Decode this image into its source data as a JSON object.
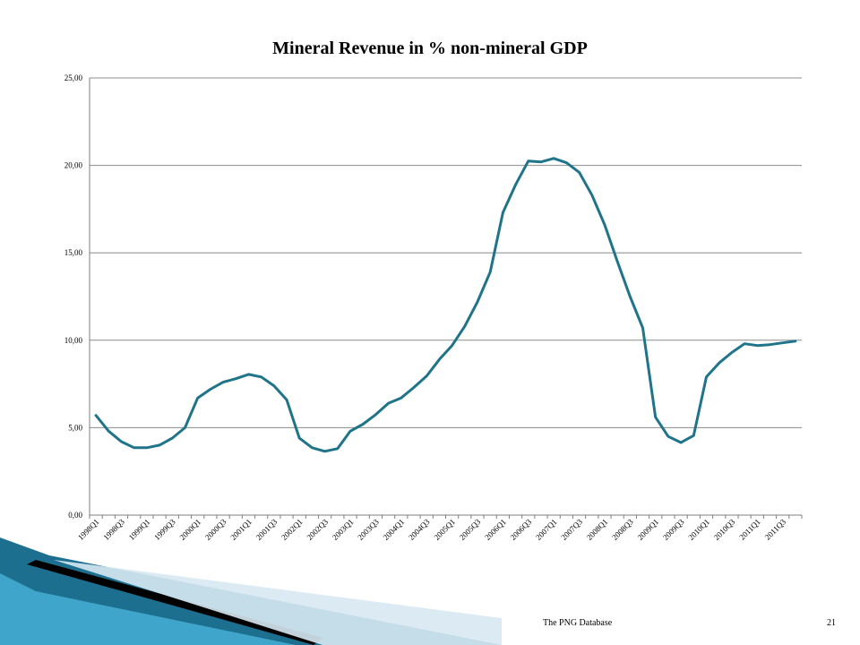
{
  "slide": {
    "footer_source": "The PNG Database",
    "page_number": "21"
  },
  "colors": {
    "series_line": "#1f7489",
    "gridline": "#8c8c8c",
    "axis": "#7f7f7f",
    "decor_blue_dark": "#1d6f8f",
    "decor_blue_light": "#4ab3d8",
    "decor_black": "#000000"
  },
  "chart_data": {
    "type": "line",
    "title": "Mineral Revenue in % non-mineral GDP",
    "xlabel": "",
    "ylabel": "",
    "ylim": [
      0,
      25
    ],
    "yticks": [
      "0,00",
      "5,00",
      "10,00",
      "15,00",
      "20,00",
      "25,00"
    ],
    "grid": true,
    "x": [
      "1998Q1",
      "1998Q2",
      "1998Q3",
      "1998Q4",
      "1999Q1",
      "1999Q2",
      "1999Q3",
      "1999Q4",
      "2000Q1",
      "2000Q2",
      "2000Q3",
      "2000Q4",
      "2001Q1",
      "2001Q2",
      "2001Q3",
      "2001Q4",
      "2002Q1",
      "2002Q2",
      "2002Q3",
      "2002Q4",
      "2003Q1",
      "2003Q2",
      "2003Q3",
      "2003Q4",
      "2004Q1",
      "2004Q2",
      "2004Q3",
      "2004Q4",
      "2005Q1",
      "2005Q2",
      "2005Q3",
      "2005Q4",
      "2006Q1",
      "2006Q2",
      "2006Q3",
      "2006Q4",
      "2007Q1",
      "2007Q2",
      "2007Q3",
      "2007Q4",
      "2008Q1",
      "2008Q2",
      "2008Q3",
      "2008Q4",
      "2009Q1",
      "2009Q2",
      "2009Q3",
      "2009Q4",
      "2010Q1",
      "2010Q2",
      "2010Q3",
      "2010Q4",
      "2011Q1",
      "2011Q2",
      "2011Q3",
      "2011Q4"
    ],
    "x_tick_labels": [
      "1998Q1",
      "1998Q3",
      "1999Q1",
      "1999Q3",
      "2000Q1",
      "2000Q3",
      "2001Q1",
      "2001Q3",
      "2002Q1",
      "2002Q3",
      "2003Q1",
      "2003Q3",
      "2004Q1",
      "2004Q3",
      "2005Q1",
      "2005Q3",
      "2006Q1",
      "2006Q3",
      "2007Q1",
      "2007Q3",
      "2008Q1",
      "2008Q3",
      "2009Q1",
      "2009Q3",
      "2010Q1",
      "2010Q3",
      "2011Q1",
      "2011Q3"
    ],
    "series": [
      {
        "values": [
          5.7,
          4.8,
          4.2,
          3.85,
          3.85,
          4.0,
          4.4,
          5.0,
          6.7,
          7.2,
          7.6,
          7.8,
          8.05,
          7.9,
          7.4,
          6.6,
          4.4,
          3.85,
          3.65,
          3.8,
          4.8,
          5.2,
          5.75,
          6.4,
          6.7,
          7.3,
          7.95,
          8.9,
          9.7,
          10.8,
          12.2,
          13.9,
          17.3,
          18.9,
          20.25,
          20.2,
          20.4,
          20.15,
          19.6,
          18.3,
          16.6,
          14.5,
          12.5,
          10.7,
          5.6,
          4.5,
          4.15,
          4.55,
          7.9,
          8.7,
          9.3,
          9.8,
          9.7,
          9.75,
          9.85,
          9.95
        ]
      }
    ]
  }
}
